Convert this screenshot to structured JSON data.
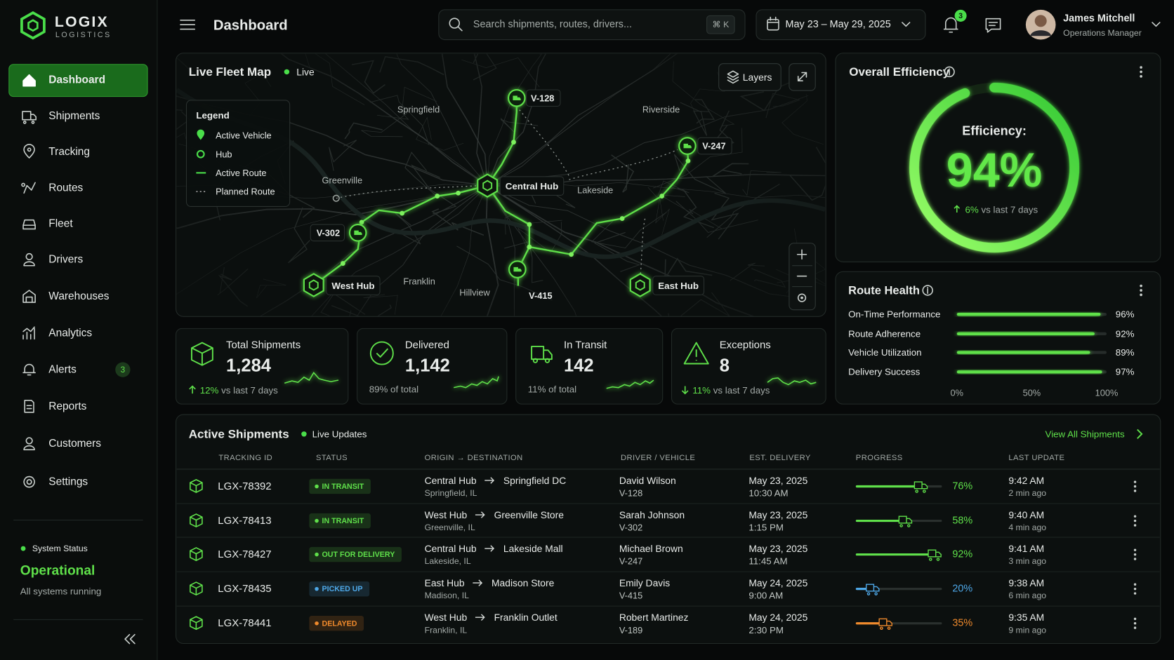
{
  "brand": {
    "name": "LOGIX",
    "tagline": "LOGISTICS"
  },
  "nav": [
    {
      "label": "Dashboard",
      "active": true
    },
    {
      "label": "Shipments"
    },
    {
      "label": "Tracking"
    },
    {
      "label": "Routes"
    },
    {
      "label": "Fleet"
    },
    {
      "label": "Drivers"
    },
    {
      "label": "Warehouses"
    },
    {
      "label": "Analytics"
    },
    {
      "label": "Alerts",
      "badge": 3
    },
    {
      "label": "Reports"
    },
    {
      "label": "Customers"
    },
    {
      "label": "Settings"
    }
  ],
  "system_status": {
    "label": "System Status",
    "state": "Operational",
    "detail": "All systems running"
  },
  "header": {
    "title": "Dashboard",
    "search_placeholder": "Search shipments, routes, drivers...",
    "shortcut": "⌘ K",
    "date_range": "May 23 – May 29, 2025",
    "notifications": 3,
    "user": {
      "name": "James Mitchell",
      "role": "Operations Manager"
    }
  },
  "map": {
    "title": "Live Fleet Map",
    "status": "Live",
    "layers_button": "Layers",
    "legend": {
      "title": "Legend",
      "items": [
        "Active Vehicle",
        "Hub",
        "Active Route",
        "Planned Route"
      ]
    },
    "places": [
      "Springfield",
      "Riverside",
      "Greenville",
      "Lakeside",
      "Franklin",
      "Hillview"
    ],
    "hubs": [
      "Central Hub",
      "West Hub",
      "East Hub"
    ],
    "vehicles": [
      "V-128",
      "V-247",
      "V-302",
      "V-415"
    ]
  },
  "efficiency": {
    "title": "Overall Efficiency",
    "label": "Efficiency:",
    "value": 94,
    "value_label": "94%",
    "lim": [
      0,
      100
    ],
    "change": "6%",
    "change_text": "vs last 7 days"
  },
  "route_health": {
    "title": "Route Health",
    "rows": [
      {
        "label": "On-Time Performance",
        "value": 96,
        "value_label": "96%"
      },
      {
        "label": "Route Adherence",
        "value": 92,
        "value_label": "92%"
      },
      {
        "label": "Vehicle Utilization",
        "value": 89,
        "value_label": "89%"
      },
      {
        "label": "Delivery Success",
        "value": 97,
        "value_label": "97%"
      }
    ],
    "lim": [
      0,
      100
    ],
    "ticks": [
      {
        "value": 0,
        "label": "0%"
      },
      {
        "value": 50,
        "label": "50%"
      },
      {
        "value": 100,
        "label": "100%"
      }
    ]
  },
  "kpis": [
    {
      "label": "Total Shipments",
      "value": "1,284",
      "change": "12%",
      "change_text": "vs last 7 days",
      "direction": "up"
    },
    {
      "label": "Delivered",
      "value": "1,142",
      "note": "89% of total"
    },
    {
      "label": "In Transit",
      "value": 142,
      "note": "11% of total"
    },
    {
      "label": "Exceptions",
      "value": 8,
      "change": "11%",
      "change_text": "vs last 7 days",
      "direction": "down"
    }
  ],
  "table": {
    "title": "Active Shipments",
    "status": "Live Updates",
    "link": "View All Shipments",
    "columns": [
      "TRACKING ID",
      "STATUS",
      "ORIGIN → DESTINATION",
      "DRIVER / VEHICLE",
      "EST. DELIVERY",
      "PROGRESS",
      "LAST UPDATE"
    ],
    "progress_lim": [
      0,
      100
    ],
    "rows": [
      {
        "id": "LGX-78392",
        "status": "IN TRANSIT",
        "color": "#5fe04a",
        "origin": "Central Hub",
        "destination": "Springfield DC",
        "location": "Springfield, IL",
        "driver": "David Wilson",
        "vehicle": "V-128",
        "date": "May 23, 2025",
        "time": "10:30 AM",
        "progress": 76,
        "progress_label": "76%",
        "updated": "9:42 AM",
        "ago": "2 min ago"
      },
      {
        "id": "LGX-78413",
        "status": "IN TRANSIT",
        "color": "#5fe04a",
        "origin": "West Hub",
        "destination": "Greenville Store",
        "location": "Greenville, IL",
        "driver": "Sarah Johnson",
        "vehicle": "V-302",
        "date": "May 23, 2025",
        "time": "1:15 PM",
        "progress": 58,
        "progress_label": "58%",
        "updated": "9:40 AM",
        "ago": "4 min ago"
      },
      {
        "id": "LGX-78427",
        "status": "OUT FOR DELIVERY",
        "color": "#5fe04a",
        "origin": "Central Hub",
        "destination": "Lakeside Mall",
        "location": "Lakeside, IL",
        "driver": "Michael Brown",
        "vehicle": "V-247",
        "date": "May 23, 2025",
        "time": "11:45 AM",
        "progress": 92,
        "progress_label": "92%",
        "updated": "9:41 AM",
        "ago": "3 min ago"
      },
      {
        "id": "LGX-78435",
        "status": "PICKED UP",
        "color": "#4ea8e8",
        "origin": "East Hub",
        "destination": "Madison Store",
        "location": "Madison, IL",
        "driver": "Emily Davis",
        "vehicle": "V-415",
        "date": "May 24, 2025",
        "time": "9:00 AM",
        "progress": 20,
        "progress_label": "20%",
        "updated": "9:38 AM",
        "ago": "6 min ago"
      },
      {
        "id": "LGX-78441",
        "status": "DELAYED",
        "color": "#f08a2c",
        "origin": "West Hub",
        "destination": "Franklin Outlet",
        "location": "Franklin, IL",
        "driver": "Robert Martinez",
        "vehicle": "V-189",
        "date": "May 24, 2025",
        "time": "2:30 PM",
        "progress": 35,
        "progress_label": "35%",
        "updated": "9:35 AM",
        "ago": "9 min ago"
      }
    ]
  }
}
